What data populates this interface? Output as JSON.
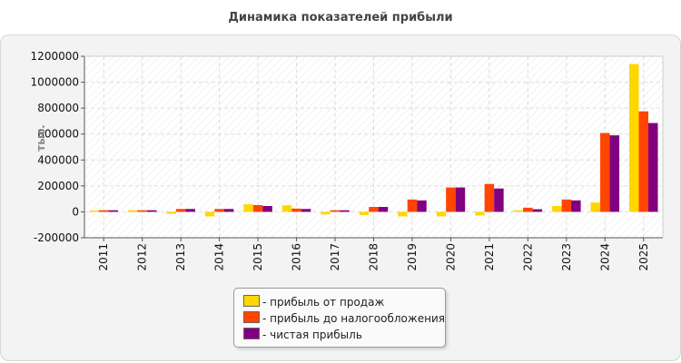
{
  "chart_data": {
    "type": "bar",
    "title": "Динамика показателей прибыли",
    "ylabel": "тыс.",
    "xlabel": "",
    "ylim": [
      -200000,
      1200000
    ],
    "yticks": [
      -200000,
      0,
      200000,
      400000,
      600000,
      800000,
      1000000,
      1200000
    ],
    "grid": true,
    "legend_position": "bottom",
    "categories": [
      "2011",
      "2012",
      "2013",
      "2014",
      "2015",
      "2016",
      "2017",
      "2018",
      "2019",
      "2020",
      "2021",
      "2022",
      "2023",
      "2024",
      "2025"
    ],
    "series": [
      {
        "name": "- прибыль от продаж",
        "color": "#ffd700",
        "values": [
          10000,
          12000,
          -15000,
          -35000,
          58000,
          50000,
          -20000,
          -25000,
          -35000,
          -35000,
          -28000,
          12000,
          45000,
          72000,
          1140000
        ]
      },
      {
        "name": "- прибыль до налогообложения",
        "color": "#ff4500",
        "values": [
          12000,
          12000,
          22000,
          22000,
          52000,
          25000,
          12000,
          38000,
          95000,
          188000,
          215000,
          32000,
          95000,
          608000,
          775000
        ]
      },
      {
        "name": "- чистая прибыль",
        "color": "#800080",
        "values": [
          12000,
          12000,
          22000,
          22000,
          45000,
          22000,
          12000,
          38000,
          88000,
          188000,
          180000,
          20000,
          88000,
          590000,
          685000
        ]
      }
    ]
  }
}
